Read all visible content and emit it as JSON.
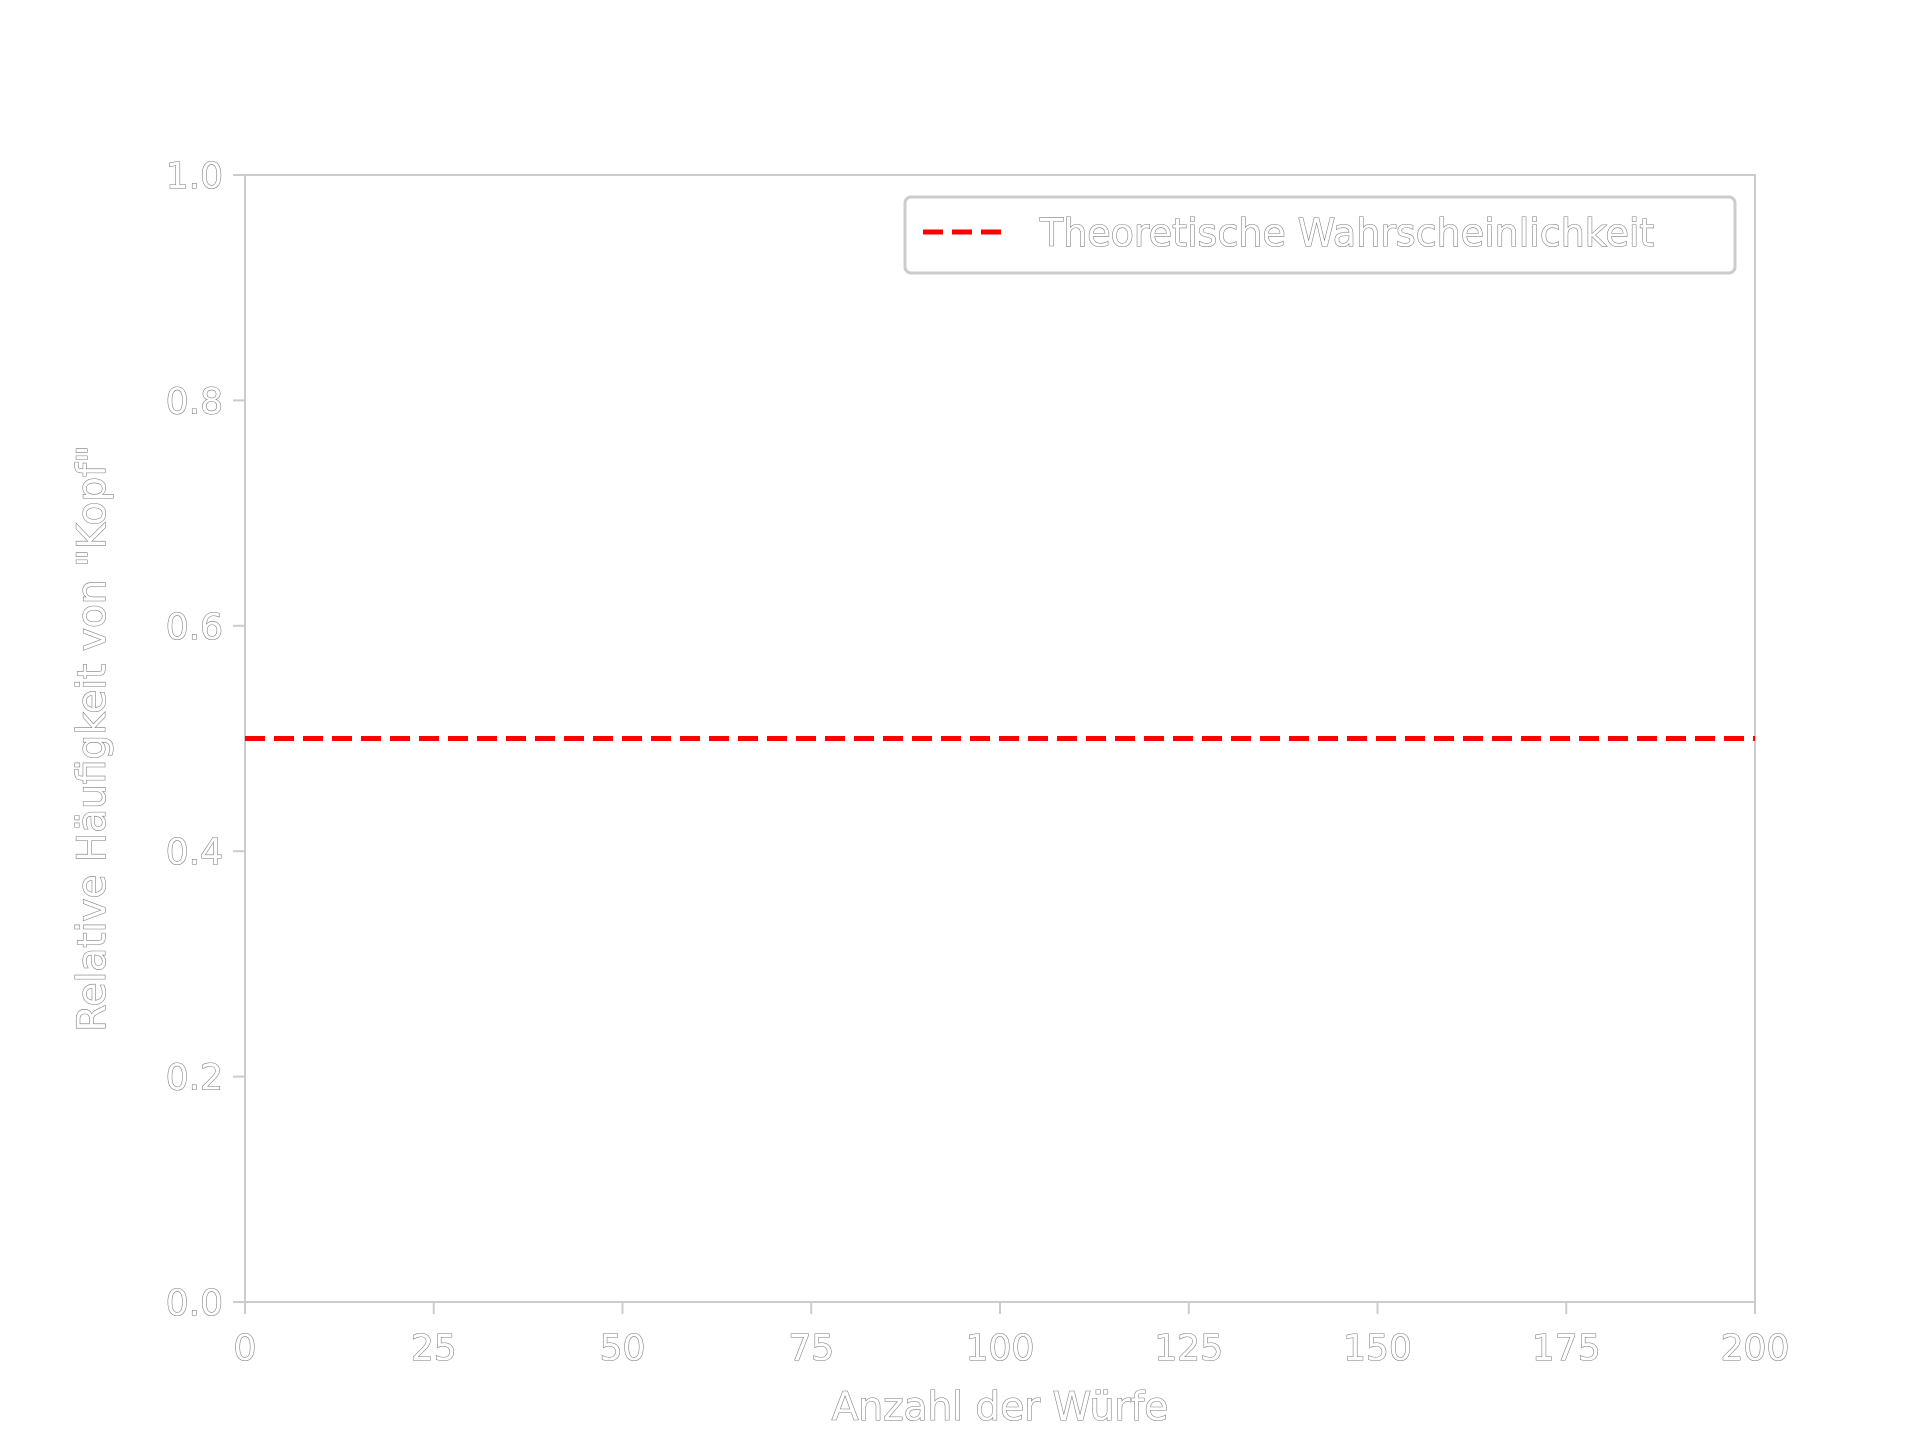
{
  "chart_data": {
    "type": "line",
    "title": "",
    "xlabel": "Anzahl der Würfe",
    "ylabel": "Relative Häufigkeit von \"Kopf\"",
    "xlim": [
      0,
      200
    ],
    "ylim": [
      0.0,
      1.0
    ],
    "xticks": [
      0,
      25,
      50,
      75,
      100,
      125,
      150,
      175,
      200
    ],
    "xtick_labels": [
      "0",
      "25",
      "50",
      "75",
      "100",
      "125",
      "150",
      "175",
      "200"
    ],
    "yticks": [
      0.0,
      0.2,
      0.4,
      0.6,
      0.8,
      1.0
    ],
    "ytick_labels": [
      "0.0",
      "0.2",
      "0.4",
      "0.6",
      "0.8",
      "1.0"
    ],
    "grid": false,
    "legend_position": "top-right",
    "series": [
      {
        "name": "Theoretische Wahrscheinlichkeit",
        "style": "dashed",
        "color": "#ff0000",
        "x": [
          0,
          200
        ],
        "y": [
          0.5,
          0.5
        ]
      }
    ]
  },
  "colors": {
    "background": "#ffffff",
    "axes": "#cccccc",
    "text_outline": "#777777",
    "series": "#ff0000"
  }
}
